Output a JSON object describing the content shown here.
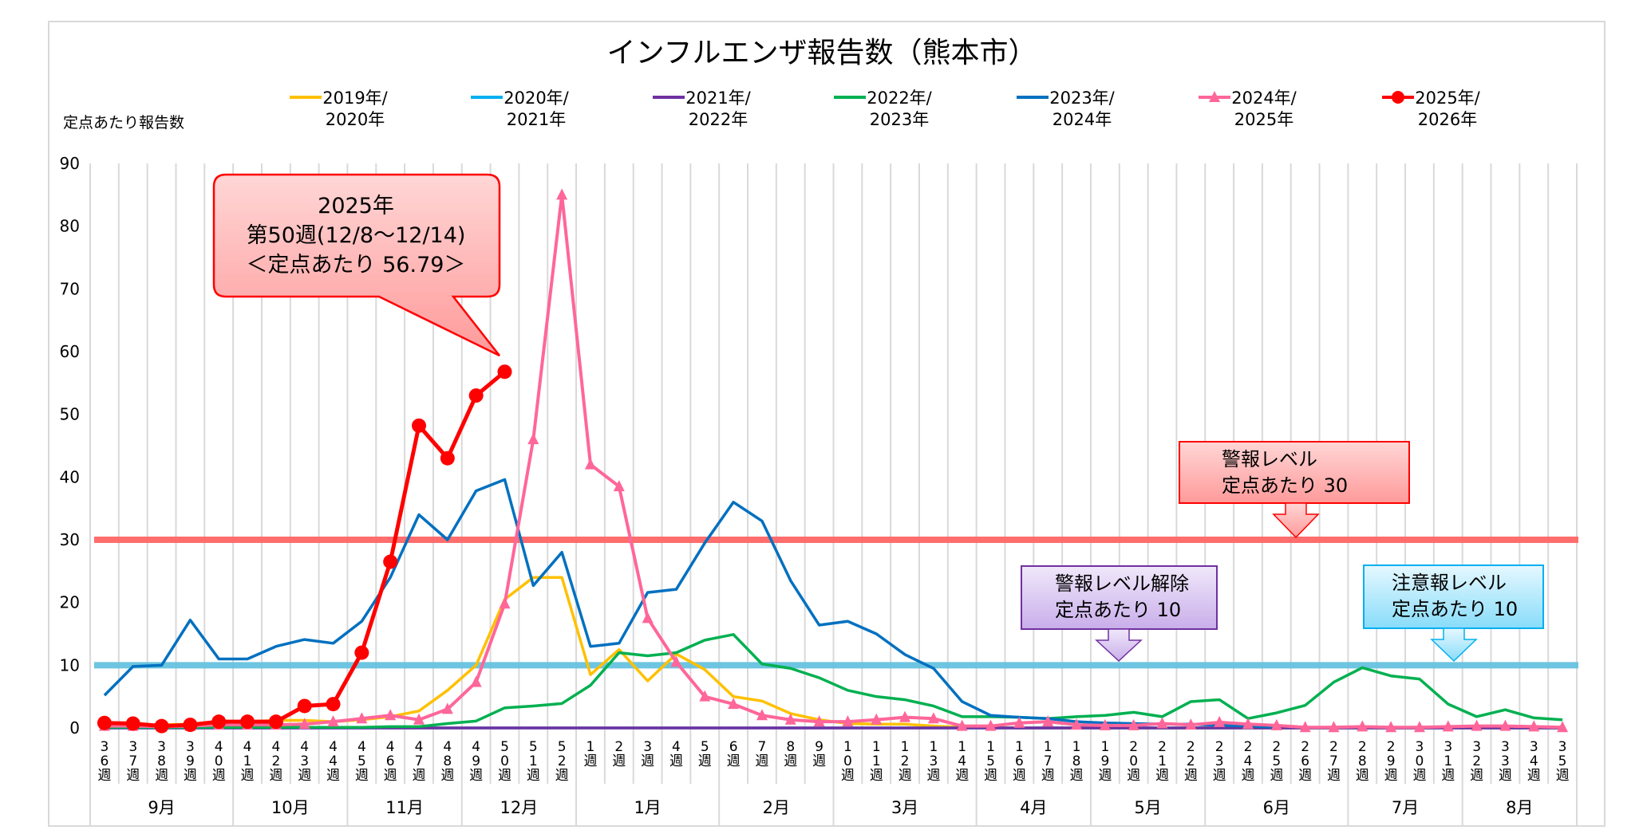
{
  "chart_data": {
    "type": "line",
    "title": "インフルエンザ報告数（熊本市）",
    "ylabel": "定点あたり報告数",
    "xlabel": "",
    "ylim": [
      0,
      90
    ],
    "yticks": [
      0,
      10,
      20,
      30,
      40,
      50,
      60,
      70,
      80,
      90
    ],
    "grid": "vertical category lines",
    "legend_position": "top",
    "categories": [
      "36週",
      "37週",
      "38週",
      "39週",
      "40週",
      "41週",
      "42週",
      "43週",
      "44週",
      "45週",
      "46週",
      "47週",
      "48週",
      "49週",
      "50週",
      "51週",
      "52週",
      "1週",
      "2週",
      "3週",
      "4週",
      "5週",
      "6週",
      "7週",
      "8週",
      "9週",
      "10週",
      "11週",
      "12週",
      "13週",
      "14週",
      "15週",
      "16週",
      "17週",
      "18週",
      "19週",
      "20週",
      "21週",
      "22週",
      "23週",
      "24週",
      "25週",
      "26週",
      "27週",
      "28週",
      "29週",
      "30週",
      "31週",
      "32週",
      "33週",
      "34週",
      "35週"
    ],
    "months": [
      {
        "label": "9月",
        "weeks": 5
      },
      {
        "label": "10月",
        "weeks": 4
      },
      {
        "label": "11月",
        "weeks": 4
      },
      {
        "label": "12月",
        "weeks": 4
      },
      {
        "label": "1月",
        "weeks": 5
      },
      {
        "label": "2月",
        "weeks": 4
      },
      {
        "label": "3月",
        "weeks": 5
      },
      {
        "label": "4月",
        "weeks": 4
      },
      {
        "label": "5月",
        "weeks": 4
      },
      {
        "label": "6月",
        "weeks": 5
      },
      {
        "label": "7月",
        "weeks": 4
      },
      {
        "label": "8月",
        "weeks": 4
      }
    ],
    "series": [
      {
        "name": "2019年/2020年",
        "name_lines": [
          "2019年/",
          "2020年"
        ],
        "color": "#ffc000",
        "marker": "none",
        "values": [
          0.6,
          0.5,
          0.5,
          0.6,
          0.8,
          1.0,
          1.2,
          1.2,
          1.0,
          1.3,
          1.8,
          2.7,
          6.0,
          10.0,
          20.5,
          24.0,
          24.0,
          8.5,
          12.5,
          7.5,
          11.8,
          9.3,
          5.0,
          4.3,
          2.3,
          1.3,
          0.7,
          0.6,
          0.6,
          0.3,
          0.1,
          0.1,
          0,
          0,
          0,
          0,
          0,
          0,
          0,
          0,
          0,
          0,
          0,
          0,
          0,
          0,
          0,
          0,
          0,
          0,
          0,
          0
        ]
      },
      {
        "name": "2020年/2021年",
        "name_lines": [
          "2020年/",
          "2021年"
        ],
        "color": "#00b0f0",
        "marker": "none",
        "values": [
          0,
          0,
          0,
          0,
          0,
          0,
          0,
          0,
          0,
          0,
          0,
          0,
          0,
          0,
          0,
          0,
          0,
          0,
          0,
          0,
          0,
          0,
          0,
          0,
          0,
          0,
          0,
          0,
          0,
          0,
          0,
          0,
          0,
          0,
          0,
          0,
          0,
          0,
          0,
          0,
          0,
          0,
          0,
          0,
          0,
          0,
          0,
          0,
          0,
          0,
          0,
          0
        ]
      },
      {
        "name": "2021年/2022年",
        "name_lines": [
          "2021年/",
          "2022年"
        ],
        "color": "#7030a0",
        "marker": "none",
        "values": [
          0,
          0,
          0,
          0,
          0,
          0,
          0,
          0,
          0,
          0,
          0,
          0,
          0,
          0,
          0,
          0,
          0,
          0,
          0,
          0,
          0,
          0,
          0,
          0,
          0,
          0,
          0,
          0,
          0,
          0,
          0,
          0,
          0,
          0,
          0,
          0,
          0,
          0,
          0,
          0,
          0,
          0,
          0,
          0,
          0,
          0,
          0,
          0,
          0,
          0,
          0,
          0
        ]
      },
      {
        "name": "2022年/2023年",
        "name_lines": [
          "2022年/",
          "2023年"
        ],
        "color": "#00b050",
        "marker": "none",
        "values": [
          0.1,
          0.1,
          0.1,
          0.1,
          0.1,
          0.1,
          0.1,
          0.1,
          0.1,
          0.1,
          0.2,
          0.2,
          0.7,
          1.1,
          3.2,
          3.5,
          3.9,
          6.8,
          12.0,
          11.5,
          12.0,
          14.0,
          14.9,
          10.2,
          9.5,
          8.0,
          6.0,
          5.0,
          4.5,
          3.5,
          1.8,
          1.8,
          1.7,
          1.5,
          1.8,
          2.0,
          2.5,
          1.8,
          4.2,
          4.5,
          1.5,
          2.4,
          3.6,
          7.3,
          9.6,
          8.3,
          7.8,
          3.8,
          1.8,
          2.9,
          1.6,
          1.3
        ]
      },
      {
        "name": "2023年/2024年",
        "name_lines": [
          "2023年/",
          "2024年"
        ],
        "color": "#0070c0",
        "marker": "none",
        "values": [
          5.2,
          9.8,
          10.0,
          17.2,
          11.0,
          11.0,
          13.0,
          14.1,
          13.5,
          17.0,
          24.0,
          34.0,
          30.0,
          37.8,
          39.6,
          22.7,
          28.0,
          13.0,
          13.5,
          21.6,
          22.1,
          29.5,
          36.0,
          33.0,
          23.5,
          16.4,
          17.0,
          15.0,
          11.7,
          9.5,
          4.2,
          2.0,
          1.7,
          1.5,
          1.0,
          0.8,
          0.7,
          0.6,
          0.6,
          0.4,
          0.3,
          0.1,
          null,
          null,
          null,
          null,
          null,
          null,
          null,
          null,
          null,
          null
        ]
      },
      {
        "name": "2024年/2025年",
        "name_lines": [
          "2024年/",
          "2025年"
        ],
        "color": "#ff6699",
        "marker": "triangle",
        "values": [
          0.3,
          0.3,
          0.2,
          0.3,
          0.5,
          0.5,
          0.5,
          0.6,
          1.0,
          1.5,
          2.0,
          1.3,
          3.0,
          7.3,
          19.8,
          46.0,
          85.0,
          42.0,
          38.5,
          17.5,
          10.5,
          5.0,
          3.8,
          2.0,
          1.3,
          1.0,
          1.0,
          1.3,
          1.7,
          1.5,
          0.3,
          0.3,
          0.8,
          1.0,
          0.5,
          0.4,
          0.4,
          0.7,
          0.5,
          0.9,
          0.6,
          0.4,
          0.1,
          0.1,
          0.2,
          0.1,
          0.1,
          0.2,
          0.3,
          0.3,
          0.2,
          0.1
        ]
      },
      {
        "name": "2025年/2026年",
        "name_lines": [
          "2025年/",
          "2026年"
        ],
        "color": "#ff0000",
        "marker": "circle",
        "values": [
          0.8,
          0.7,
          0.3,
          0.5,
          1.0,
          1.0,
          1.0,
          3.5,
          3.8,
          12.0,
          26.5,
          48.2,
          43.0,
          53.0,
          56.79,
          null,
          null,
          null,
          null,
          null,
          null,
          null,
          null,
          null,
          null,
          null,
          null,
          null,
          null,
          null,
          null,
          null,
          null,
          null,
          null,
          null,
          null,
          null,
          null,
          null,
          null,
          null,
          null,
          null,
          null,
          null,
          null,
          null,
          null,
          null,
          null,
          null
        ]
      }
    ],
    "reference_lines": [
      {
        "value": 30,
        "color": "#ff6666"
      },
      {
        "value": 10,
        "color": "#66c2e0"
      }
    ],
    "annotations": {
      "latest": {
        "lines": [
          "2025年",
          "第50週(12/8～12/14)",
          "＜定点あたり  56.79＞"
        ],
        "fill": "#ffb3b3",
        "border": "#ff0000"
      },
      "warning": {
        "lines": [
          "警報レベル",
          "定点あたり 30"
        ],
        "fill": "#ffb8b8",
        "border": "#ff0000"
      },
      "warning_end": {
        "lines": [
          "警報レベル解除",
          "定点あたり  10"
        ],
        "fill": "#e4d5f5",
        "border": "#7030a0"
      },
      "advisory": {
        "lines": [
          "注意報レベル",
          "定点あたり 10"
        ],
        "fill": "#c8efff",
        "border": "#00b0f0"
      }
    }
  }
}
